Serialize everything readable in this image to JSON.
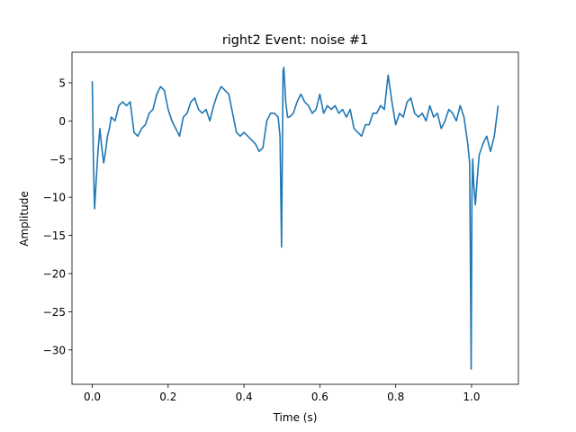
{
  "chart_data": {
    "type": "line",
    "title": "right2 Event: noise #1",
    "xlabel": "Time (s)",
    "ylabel": "Amplitude",
    "xlim": [
      -0.0535,
      1.1235
    ],
    "ylim": [
      -34.5,
      9.0
    ],
    "xticks": [
      0.0,
      0.2,
      0.4,
      0.6,
      0.8,
      1.0
    ],
    "xtick_labels": [
      "0.0",
      "0.2",
      "0.4",
      "0.6",
      "0.8",
      "1.0"
    ],
    "yticks": [
      5,
      0,
      -5,
      -10,
      -15,
      -20,
      -25,
      -30
    ],
    "ytick_labels": [
      "5",
      "0",
      "−5",
      "−10",
      "−15",
      "−20",
      "−25",
      "−30"
    ],
    "grid": false,
    "color": "#1f77b4",
    "series": [
      {
        "x": [
          0.0,
          0.003,
          0.006,
          0.01,
          0.015,
          0.02,
          0.025,
          0.03,
          0.035,
          0.04,
          0.045,
          0.05,
          0.06,
          0.07,
          0.08,
          0.09,
          0.1,
          0.11,
          0.12,
          0.13,
          0.14,
          0.15,
          0.16,
          0.17,
          0.18,
          0.19,
          0.2,
          0.21,
          0.22,
          0.23,
          0.24,
          0.25,
          0.26,
          0.27,
          0.28,
          0.29,
          0.3,
          0.31,
          0.32,
          0.33,
          0.34,
          0.35,
          0.36,
          0.37,
          0.38,
          0.39,
          0.4,
          0.41,
          0.42,
          0.43,
          0.44,
          0.45,
          0.46,
          0.47,
          0.48,
          0.49,
          0.495,
          0.499,
          0.501,
          0.503,
          0.505,
          0.51,
          0.515,
          0.52,
          0.53,
          0.54,
          0.55,
          0.56,
          0.57,
          0.58,
          0.59,
          0.6,
          0.61,
          0.62,
          0.63,
          0.64,
          0.65,
          0.66,
          0.67,
          0.68,
          0.69,
          0.7,
          0.71,
          0.72,
          0.73,
          0.74,
          0.75,
          0.76,
          0.77,
          0.78,
          0.79,
          0.8,
          0.81,
          0.82,
          0.83,
          0.84,
          0.85,
          0.86,
          0.87,
          0.88,
          0.89,
          0.9,
          0.91,
          0.92,
          0.93,
          0.94,
          0.95,
          0.96,
          0.97,
          0.98,
          0.99,
          0.995,
          0.999,
          1.001,
          1.003,
          1.006,
          1.01,
          1.015,
          1.02,
          1.03,
          1.04,
          1.05,
          1.06,
          1.07
        ],
        "y": [
          5.2,
          -5.5,
          -11.5,
          -8.0,
          -4.0,
          -1.0,
          -3.5,
          -5.5,
          -4.0,
          -2.0,
          -1.0,
          0.5,
          0.0,
          2.0,
          2.5,
          2.0,
          2.5,
          -1.5,
          -2.0,
          -1.0,
          -0.5,
          1.0,
          1.5,
          3.5,
          4.5,
          4.0,
          1.5,
          0.0,
          -1.0,
          -2.0,
          0.5,
          1.0,
          2.5,
          3.0,
          1.5,
          1.0,
          1.5,
          0.0,
          2.0,
          3.5,
          4.5,
          4.0,
          3.5,
          1.0,
          -1.5,
          -2.0,
          -1.5,
          -2.0,
          -2.5,
          -3.0,
          -4.0,
          -3.5,
          0.0,
          1.0,
          1.0,
          0.5,
          -2.0,
          -16.5,
          -5.0,
          6.5,
          7.0,
          2.5,
          0.5,
          0.5,
          1.0,
          2.5,
          3.5,
          2.5,
          2.0,
          1.0,
          1.5,
          3.5,
          1.0,
          2.0,
          1.5,
          2.0,
          1.0,
          1.5,
          0.5,
          1.5,
          -1.0,
          -1.5,
          -2.0,
          -0.5,
          -0.5,
          1.0,
          1.0,
          2.0,
          1.5,
          6.0,
          2.5,
          -0.5,
          1.0,
          0.5,
          2.5,
          3.0,
          1.0,
          0.5,
          1.0,
          0.0,
          2.0,
          0.5,
          1.0,
          -1.0,
          0.0,
          1.5,
          1.0,
          0.0,
          2.0,
          0.5,
          -3.0,
          -5.5,
          -32.5,
          -10.0,
          -5.0,
          -8.5,
          -11.0,
          -7.5,
          -4.5,
          -3.0,
          -2.0,
          -4.0,
          -2.0,
          2.0
        ]
      }
    ]
  }
}
